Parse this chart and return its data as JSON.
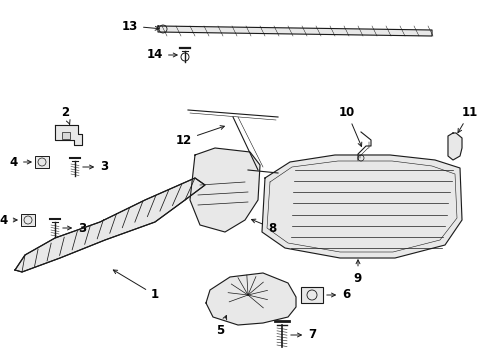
{
  "bg_color": "#ffffff",
  "line_color": "#1a1a1a",
  "label_color": "#000000",
  "figsize": [
    4.89,
    3.6
  ],
  "dpi": 100,
  "font_size": 8.5,
  "line_width": 0.8
}
